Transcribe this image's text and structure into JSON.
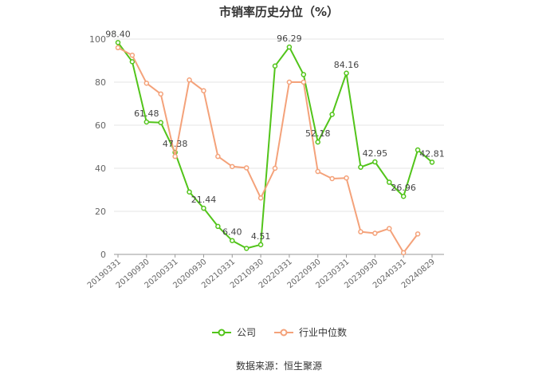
{
  "chart_data": {
    "type": "line",
    "title": "市销率历史分位（%）",
    "source_text": "数据来源：恒生聚源",
    "ylim": [
      0,
      100
    ],
    "y_ticks": [
      0,
      20,
      40,
      60,
      80,
      100
    ],
    "x": [
      "20190331",
      "20190630",
      "20190930",
      "20191231",
      "20200331",
      "20200630",
      "20200930",
      "20201231",
      "20210331",
      "20210630",
      "20210930",
      "20211231",
      "20220331",
      "20220630",
      "20220930",
      "20221231",
      "20230331",
      "20230630",
      "20230930",
      "20231231",
      "20240331",
      "20240630",
      "20240829"
    ],
    "x_tick_labels": [
      "20190331",
      "20190930",
      "20200331",
      "20200930",
      "20210331",
      "20210930",
      "20220331",
      "20220930",
      "20230331",
      "20230930",
      "20240331",
      "20240829"
    ],
    "grid": true,
    "legend_position": "bottom-center",
    "series": [
      {
        "name": "公司",
        "color": "#52c41a",
        "values": [
          98.4,
          89.5,
          61.48,
          61.2,
          47.38,
          29.0,
          21.44,
          13.0,
          6.4,
          2.8,
          4.51,
          87.5,
          96.29,
          83.5,
          52.18,
          65.0,
          84.16,
          40.5,
          42.95,
          33.5,
          26.96,
          48.5,
          42.81
        ],
        "data_labels": [
          {
            "index": 0,
            "text": "98.40"
          },
          {
            "index": 2,
            "text": "61.48"
          },
          {
            "index": 4,
            "text": "47.38"
          },
          {
            "index": 6,
            "text": "21.44"
          },
          {
            "index": 8,
            "text": "6.40"
          },
          {
            "index": 10,
            "text": "4.51"
          },
          {
            "index": 12,
            "text": "96.29"
          },
          {
            "index": 14,
            "text": "52.18"
          },
          {
            "index": 16,
            "text": "84.16"
          },
          {
            "index": 18,
            "text": "42.95"
          },
          {
            "index": 20,
            "text": "26.96"
          },
          {
            "index": 22,
            "text": "42.81"
          }
        ]
      },
      {
        "name": "行业中位数",
        "color": "#f4a27a",
        "values": [
          96.0,
          92.5,
          79.5,
          74.5,
          45.5,
          81.0,
          76.0,
          45.5,
          40.8,
          40.2,
          26.2,
          40.0,
          80.0,
          80.0,
          38.5,
          35.2,
          35.5,
          10.5,
          9.8,
          12.0,
          0.8,
          9.5,
          null
        ]
      }
    ]
  }
}
